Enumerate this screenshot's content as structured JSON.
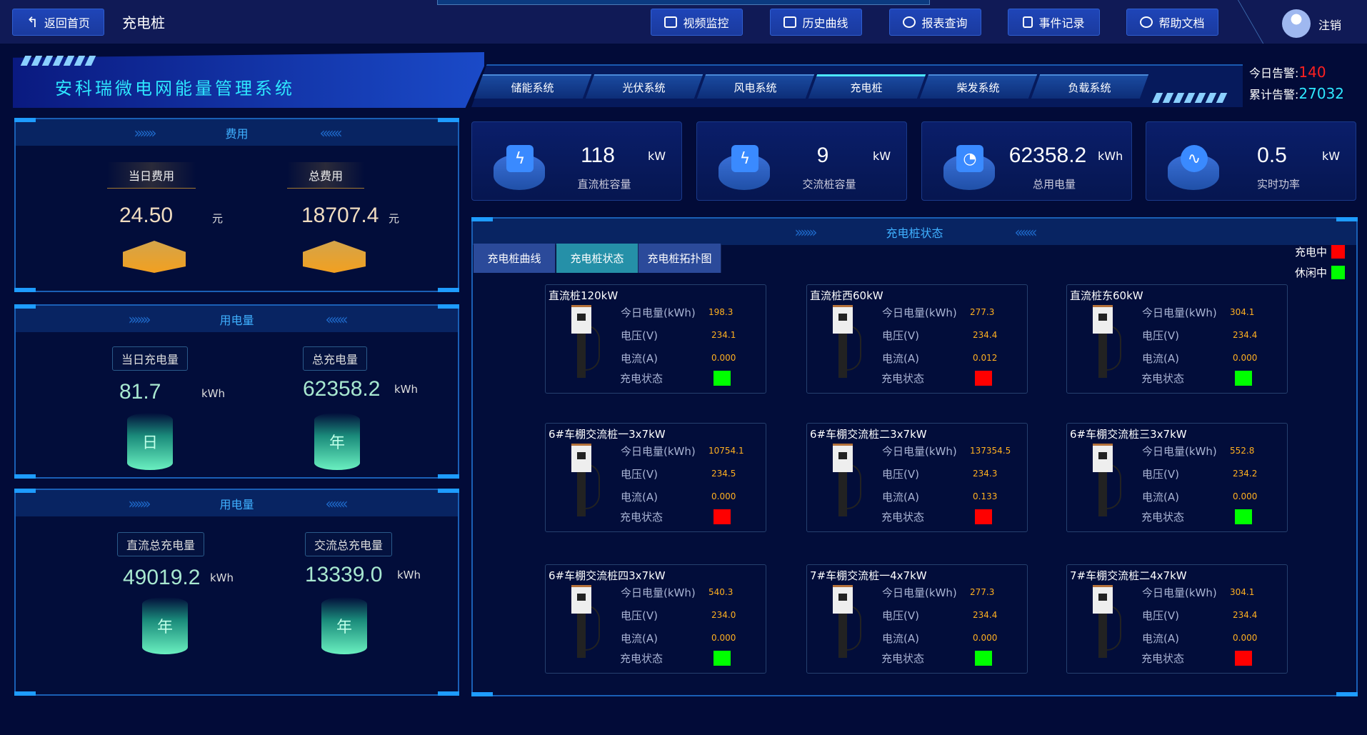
{
  "topbar": {
    "back_label": "返回首页",
    "page_title": "充电桩",
    "buttons": [
      {
        "label": "视频监控",
        "icon": "video-icon"
      },
      {
        "label": "历史曲线",
        "icon": "chart-icon"
      },
      {
        "label": "报表查询",
        "icon": "search-icon"
      },
      {
        "label": "事件记录",
        "icon": "document-icon"
      },
      {
        "label": "帮助文档",
        "icon": "help-icon"
      }
    ],
    "logout_label": "注销"
  },
  "header": {
    "system_name": "安科瑞微电网能量管理系统",
    "nav": [
      "储能系统",
      "光伏系统",
      "风电系统",
      "充电桩",
      "柴发系统",
      "负载系统"
    ],
    "active_nav": "充电桩",
    "alarms": {
      "today_label": "今日告警:",
      "today_value": "140",
      "total_label": "累计告警:",
      "total_value": "27032"
    }
  },
  "cost": {
    "title": "费用",
    "today_label": "当日费用",
    "today_value": "24.50",
    "today_unit": "元",
    "total_label": "总费用",
    "total_value": "18707.4",
    "total_unit": "元"
  },
  "energy": {
    "title": "用电量",
    "today_label": "当日充电量",
    "today_value": "81.7",
    "today_unit": "kWh",
    "today_icon": "日",
    "total_label": "总充电量",
    "total_value": "62358.2",
    "total_unit": "kWh",
    "total_icon": "年"
  },
  "energy2": {
    "title": "用电量",
    "dc_label": "直流总充电量",
    "dc_value": "49019.2",
    "dc_unit": "kWh",
    "dc_icon": "年",
    "ac_label": "交流总充电量",
    "ac_value": "13339.0",
    "ac_unit": "kWh",
    "ac_icon": "年"
  },
  "kpis": [
    {
      "value": "118",
      "unit": "kW",
      "label": "直流桩容量",
      "icon": "battery-icon"
    },
    {
      "value": "9",
      "unit": "kW",
      "label": "交流桩容量",
      "icon": "battery-icon"
    },
    {
      "value": "62358.2",
      "unit": "kWh",
      "label": "总用电量",
      "icon": "gauge-icon"
    },
    {
      "value": "0.5",
      "unit": "kW",
      "label": "实时功率",
      "icon": "pulse-icon"
    }
  ],
  "status_panel": {
    "title": "充电桩状态",
    "tabs": [
      "充电桩曲线",
      "充电桩状态",
      "充电桩拓扑图"
    ],
    "active_tab": "充电桩状态",
    "legend": [
      {
        "label": "充电中",
        "color": "#ff0000"
      },
      {
        "label": "休闲中",
        "color": "#00ff00"
      }
    ],
    "field_labels": {
      "energy": "今日电量(kWh)",
      "voltage": "电压(V)",
      "current": "电流(A)",
      "status": "充电状态"
    },
    "chargers": [
      {
        "name": "直流桩120kW",
        "energy": "198.3",
        "voltage": "234.1",
        "current": "0.000",
        "charging": false
      },
      {
        "name": "直流桩西60kW",
        "energy": "277.3",
        "voltage": "234.4",
        "current": "0.012",
        "charging": true
      },
      {
        "name": "直流桩东60kW",
        "energy": "304.1",
        "voltage": "234.4",
        "current": "0.000",
        "charging": false
      },
      {
        "name": "6#车棚交流桩一3x7kW",
        "energy": "10754.1",
        "voltage": "234.5",
        "current": "0.000",
        "charging": true
      },
      {
        "name": "6#车棚交流桩二3x7kW",
        "energy": "137354.5",
        "voltage": "234.3",
        "current": "0.133",
        "charging": true
      },
      {
        "name": "6#车棚交流桩三3x7kW",
        "energy": "552.8",
        "voltage": "234.2",
        "current": "0.000",
        "charging": false
      },
      {
        "name": "6#车棚交流桩四3x7kW",
        "energy": "540.3",
        "voltage": "234.0",
        "current": "0.000",
        "charging": false
      },
      {
        "name": "7#车棚交流桩一4x7kW",
        "energy": "277.3",
        "voltage": "234.4",
        "current": "0.000",
        "charging": false
      },
      {
        "name": "7#车棚交流桩二4x7kW",
        "energy": "304.1",
        "voltage": "234.4",
        "current": "0.000",
        "charging": true
      }
    ]
  },
  "colors": {
    "charging": "#ff0000",
    "idle": "#00ff00",
    "accent": "#2ee8ff",
    "alarm": "#ff2020"
  }
}
